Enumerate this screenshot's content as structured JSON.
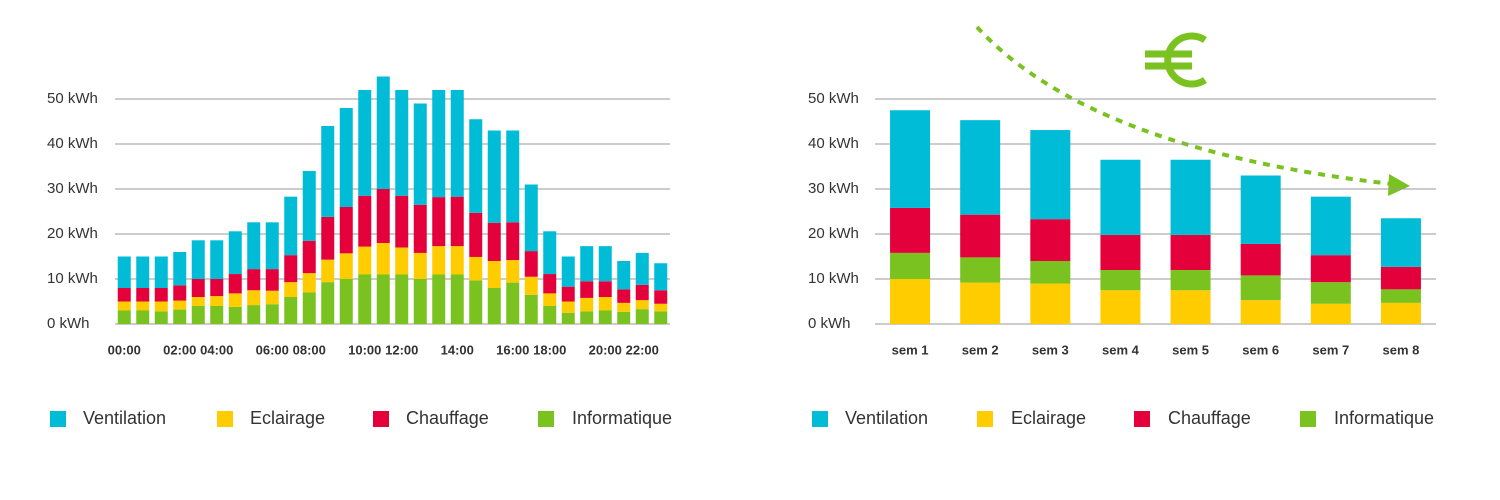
{
  "chart_data": [
    {
      "type": "stacked-bar",
      "categories": [
        "00:00",
        null,
        null,
        "02:00",
        null,
        "04:00",
        null,
        null,
        "06:00",
        null,
        "08:00",
        null,
        null,
        "10:00",
        null,
        "12:00",
        null,
        null,
        "14:00",
        null,
        null,
        "16:00",
        null,
        "18:00",
        null,
        null,
        "20:00",
        null,
        "22:00",
        null
      ],
      "series": [
        {
          "name": "Ventilation",
          "color": "#00bcd6",
          "values": [
            7,
            7,
            7,
            7.4,
            8.6,
            8.6,
            9.5,
            10.4,
            10.4,
            13,
            15.5,
            20.2,
            22,
            23.5,
            25,
            23.5,
            22.5,
            23.8,
            23.7,
            20.8,
            20.5,
            20.4,
            14.8,
            9.5,
            6.7,
            7.8,
            7.8,
            6.3,
            7.1,
            6
          ]
        },
        {
          "name": "Eclairage",
          "color": "#ffcc00",
          "values": [
            2,
            2,
            2.2,
            2,
            2,
            2.2,
            3,
            3.3,
            3,
            3.3,
            4.3,
            5,
            5.7,
            6.2,
            7,
            6,
            5.8,
            6.3,
            6.3,
            5.2,
            6,
            5,
            4,
            2.8,
            2.5,
            3,
            3,
            2,
            2,
            1.7
          ]
        },
        {
          "name": "Chauffage",
          "color": "#e4003a",
          "values": [
            3,
            3,
            3,
            3.4,
            4,
            3.8,
            4.3,
            4.7,
            4.8,
            6,
            7.2,
            9.5,
            10.3,
            11.3,
            12,
            11.5,
            10.7,
            10.9,
            11,
            9.8,
            8.5,
            8.4,
            5.7,
            4.3,
            3.3,
            3.7,
            3.5,
            3,
            3.4,
            3
          ]
        },
        {
          "name": "Informatique",
          "color": "#7ac21f",
          "values": [
            3,
            3,
            2.8,
            3.2,
            4,
            4,
            3.8,
            4.2,
            4.4,
            6,
            7,
            9.3,
            10,
            11,
            11,
            11,
            10,
            11,
            11,
            9.7,
            8,
            9.2,
            6.5,
            4,
            2.5,
            2.8,
            3,
            2.7,
            3.3,
            2.8
          ]
        }
      ],
      "ylim": [
        0,
        55
      ],
      "yticks": [
        {
          "value": 0,
          "label": "0 kWh"
        },
        {
          "value": 10,
          "label": "10 kWh"
        },
        {
          "value": 20,
          "label": "20 kWh"
        },
        {
          "value": 30,
          "label": "30 kWh"
        },
        {
          "value": 40,
          "label": "40 kWh"
        },
        {
          "value": 50,
          "label": "50 kWh"
        }
      ],
      "grid": true,
      "legend": "bottom"
    },
    {
      "type": "stacked-bar",
      "categories": [
        "sem 1",
        "sem 2",
        "sem 3",
        "sem 4",
        "sem 5",
        "sem 6",
        "sem 7",
        "sem 8"
      ],
      "series": [
        {
          "name": "Ventilation",
          "color": "#00bcd6",
          "values": [
            21.7,
            21,
            19.8,
            16.7,
            16.7,
            15.2,
            13,
            10.8
          ]
        },
        {
          "name": "Eclairage",
          "color": "#ffcc00",
          "values": [
            10,
            9.2,
            9,
            7.5,
            7.5,
            5.3,
            4.5,
            4.7
          ]
        },
        {
          "name": "Chauffage",
          "color": "#e4003a",
          "values": [
            10,
            9.5,
            9.3,
            7.8,
            7.8,
            7,
            6,
            5
          ]
        },
        {
          "name": "Informatique",
          "color": "#7ac21f",
          "values": [
            5.8,
            5.6,
            5,
            4.5,
            4.5,
            5.5,
            4.8,
            3
          ]
        }
      ],
      "ylim": [
        0,
        55
      ],
      "yticks": [
        {
          "value": 0,
          "label": "0 kWh"
        },
        {
          "value": 10,
          "label": "10 kWh"
        },
        {
          "value": 20,
          "label": "20 kWh"
        },
        {
          "value": 30,
          "label": "30 kWh"
        },
        {
          "value": 40,
          "label": "40 kWh"
        },
        {
          "value": 50,
          "label": "50 kWh"
        }
      ],
      "grid": true,
      "legend": "bottom"
    }
  ]
}
